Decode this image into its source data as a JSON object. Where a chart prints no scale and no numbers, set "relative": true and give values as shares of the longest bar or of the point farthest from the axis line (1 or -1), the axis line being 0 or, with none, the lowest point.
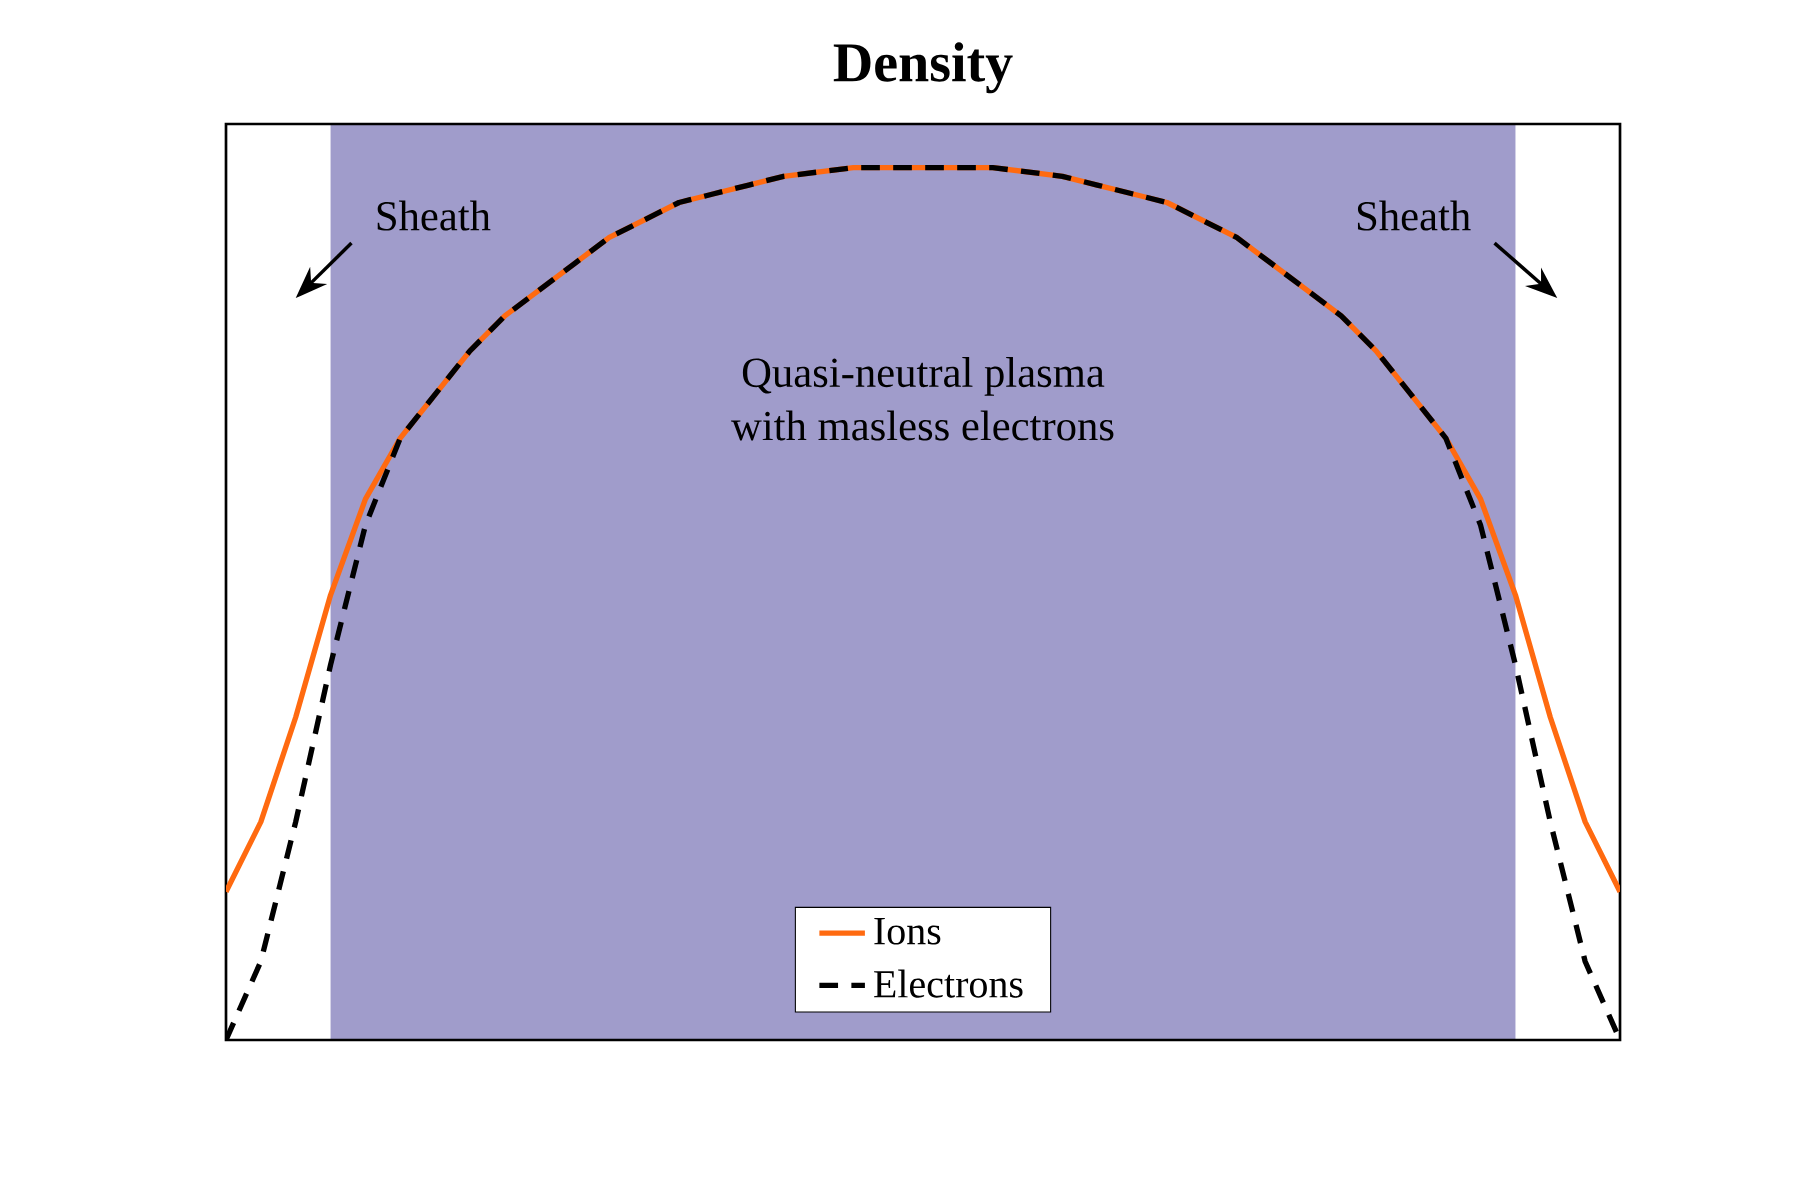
{
  "chart_data": {
    "type": "line",
    "title": "Density",
    "relative": true,
    "tick_labels": false,
    "legend": "bottom",
    "marker": "none",
    "categories": [
      null,
      null,
      null,
      null,
      null,
      null,
      null,
      null,
      null,
      null,
      null,
      null,
      null,
      null,
      null,
      null,
      null,
      null,
      null,
      null,
      null,
      null,
      null,
      null,
      null,
      null,
      null,
      null,
      null,
      null,
      null,
      null,
      null,
      null,
      null,
      null,
      null,
      null,
      null,
      null,
      null
    ],
    "series": [
      {
        "name": "Ions",
        "color": "#ff6a10",
        "line_style": "solid",
        "values": [
          0.17,
          0.25,
          0.37,
          0.51,
          0.62,
          0.69,
          0.74,
          0.79,
          0.83,
          0.86,
          0.89,
          0.92,
          0.94,
          0.96,
          0.97,
          0.98,
          0.99,
          0.995,
          1,
          1,
          1,
          1,
          1,
          0.995,
          0.99,
          0.98,
          0.97,
          0.96,
          0.94,
          0.92,
          0.89,
          0.86,
          0.83,
          0.79,
          0.74,
          0.69,
          0.62,
          0.51,
          0.37,
          0.25,
          0.17
        ]
      },
      {
        "name": "Electrons",
        "color": "#000000",
        "line_style": "dashed",
        "values": [
          0,
          0.09,
          0.25,
          0.43,
          0.59,
          0.69,
          0.74,
          0.79,
          0.83,
          0.86,
          0.89,
          0.92,
          0.94,
          0.96,
          0.97,
          0.98,
          0.99,
          0.995,
          1,
          1,
          1,
          1,
          1,
          0.995,
          0.99,
          0.98,
          0.97,
          0.96,
          0.94,
          0.92,
          0.89,
          0.86,
          0.83,
          0.79,
          0.74,
          0.69,
          0.59,
          0.43,
          0.25,
          0.09,
          0
        ]
      }
    ],
    "annotations": [
      "Sheath",
      "Sheath",
      "Quasi-neutral plasma\nwith masless electrons"
    ]
  }
}
